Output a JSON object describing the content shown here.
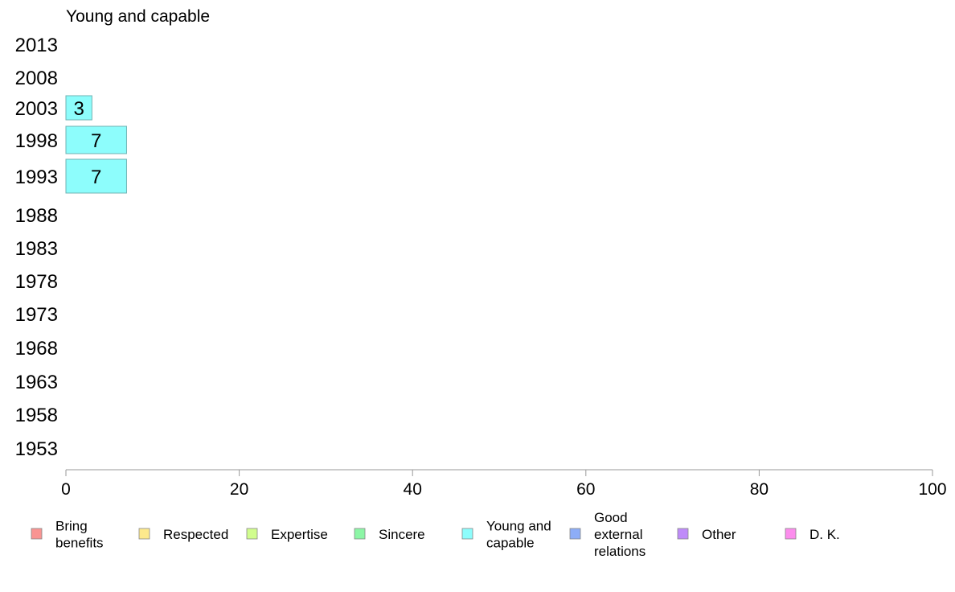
{
  "chart_data": {
    "type": "bar",
    "orientation": "horizontal",
    "title": "Young and capable",
    "categories": [
      "2013",
      "2008",
      "2003",
      "1998",
      "1993",
      "1988",
      "1983",
      "1978",
      "1973",
      "1968",
      "1963",
      "1958",
      "1953"
    ],
    "series": [
      {
        "name": "Young and capable",
        "color": "#8dfdfc",
        "values": [
          null,
          null,
          3,
          7,
          7,
          null,
          null,
          null,
          null,
          null,
          null,
          null,
          null
        ],
        "labels": [
          "",
          "",
          "3",
          "7",
          "7",
          "",
          "",
          "",
          "",
          "",
          "",
          "",
          ""
        ]
      }
    ],
    "xlim": [
      0,
      100
    ],
    "xticks": [
      "0",
      "20",
      "40",
      "60",
      "80",
      "100"
    ],
    "xlabel": "",
    "ylabel": "",
    "grid": false,
    "legend_position": "bottom",
    "legend": [
      {
        "lines": [
          "Bring",
          "benefits"
        ],
        "color": "#f99492"
      },
      {
        "lines": [
          "Respected"
        ],
        "color": "#fde98c"
      },
      {
        "lines": [
          "Expertise"
        ],
        "color": "#d1fd8e"
      },
      {
        "lines": [
          "Sincere"
        ],
        "color": "#8df6a6"
      },
      {
        "lines": [
          "Young and",
          "capable"
        ],
        "color": "#8dfdfc"
      },
      {
        "lines": [
          "Good",
          "external",
          "relations"
        ],
        "color": "#8dadf7"
      },
      {
        "lines": [
          "Other"
        ],
        "color": "#bf8bf9"
      },
      {
        "lines": [
          "D. K."
        ],
        "color": "#fc8ded"
      }
    ]
  }
}
